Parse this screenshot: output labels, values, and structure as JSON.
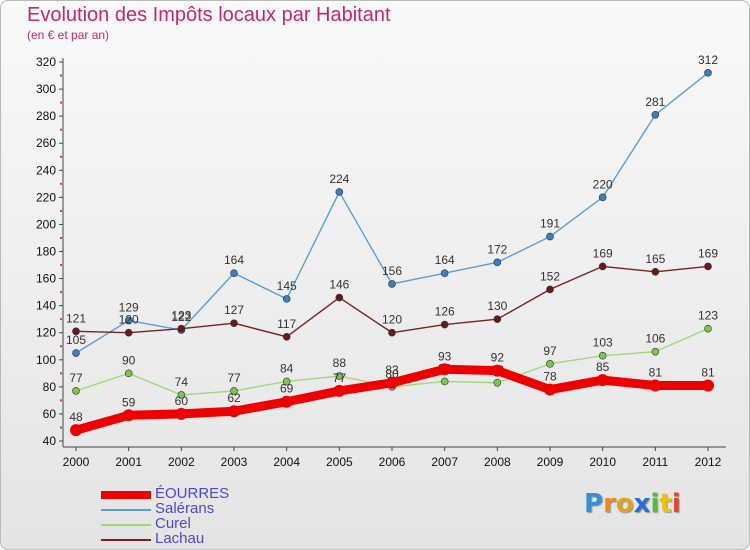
{
  "header": {
    "title": "Evolution des Impôts locaux par Habitant",
    "subtitle": "(en € et par an)"
  },
  "logo": {
    "letters": [
      "P",
      "r",
      "o",
      "x",
      "i",
      "t",
      "i"
    ],
    "colors": [
      "#3a8fd0",
      "#f08a1c",
      "#e0a020",
      "#2a6fd6",
      "#58b848",
      "#e8c21c",
      "#e04830"
    ]
  },
  "colors": {
    "title": "#c4286a",
    "legend_text": "#4a4ac8"
  },
  "chart_data": {
    "type": "line",
    "title": "Evolution des Impôts locaux par Habitant",
    "subtitle": "(en € et par an)",
    "xlabel": "",
    "ylabel": "",
    "categories": [
      "2000",
      "2001",
      "2002",
      "2003",
      "2004",
      "2005",
      "2006",
      "2007",
      "2008",
      "2009",
      "2010",
      "2011",
      "2012"
    ],
    "ylim": [
      40,
      320
    ],
    "yticks": [
      40,
      60,
      80,
      100,
      120,
      140,
      160,
      180,
      200,
      220,
      240,
      260,
      280,
      300,
      320
    ],
    "grid": false,
    "legend_position": "bottom-left",
    "series": [
      {
        "name": "Salérans",
        "color": "#5a9fd4",
        "marker": "#3a7fc0",
        "values": [
          105,
          129,
          122,
          164,
          145,
          224,
          156,
          164,
          172,
          191,
          220,
          281,
          312
        ]
      },
      {
        "name": "Lachau",
        "color": "#7a2020",
        "marker": "#6a1818",
        "values": [
          121,
          120,
          123,
          127,
          117,
          146,
          120,
          126,
          130,
          152,
          169,
          165,
          169
        ]
      },
      {
        "name": "Curel",
        "color": "#9fd87a",
        "marker": "#7ac84a",
        "values": [
          77,
          90,
          74,
          77,
          84,
          88,
          80,
          84,
          83,
          97,
          103,
          106,
          123
        ]
      },
      {
        "name": "ÉOURRES",
        "color": "#ee0000",
        "marker": "#ee0000",
        "values": [
          48,
          59,
          60,
          62,
          69,
          77,
          83,
          93,
          92,
          78,
          85,
          81,
          81
        ]
      }
    ],
    "legend": [
      "ÉOURRES",
      "Salérans",
      "Curel",
      "Lachau"
    ]
  }
}
